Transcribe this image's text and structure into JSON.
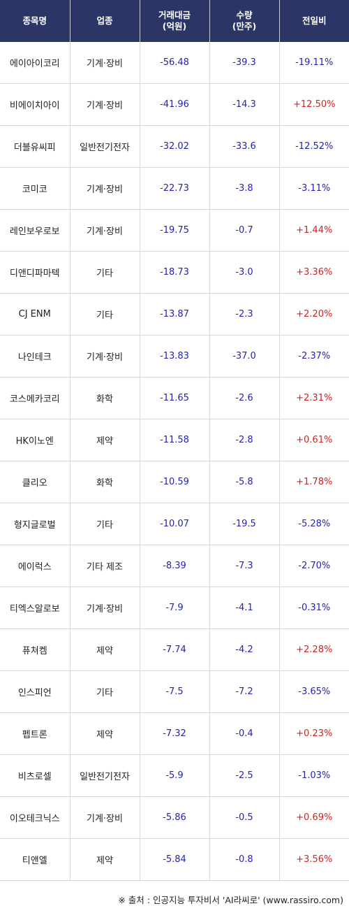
{
  "colors": {
    "header_bg": "#2b3566",
    "header_text": "#ffffff",
    "up": "#d62020",
    "down": "#2424a8"
  },
  "header": {
    "name": "종목명",
    "sector": "업종",
    "amount_line1": "거래대금",
    "amount_line2": "(억원)",
    "qty_line1": "수량",
    "qty_line2": "(만주)",
    "change": "전일비"
  },
  "rows": [
    {
      "name": "에이아이코리",
      "sector": "기계·장비",
      "amount": "-56.48",
      "qty": "-39.3",
      "change": "-19.11%",
      "dir": "down"
    },
    {
      "name": "비에이치아이",
      "sector": "기계·장비",
      "amount": "-41.96",
      "qty": "-14.3",
      "change": "+12.50%",
      "dir": "up"
    },
    {
      "name": "더블유씨피",
      "sector": "일반전기전자",
      "amount": "-32.02",
      "qty": "-33.6",
      "change": "-12.52%",
      "dir": "down"
    },
    {
      "name": "코미코",
      "sector": "기계·장비",
      "amount": "-22.73",
      "qty": "-3.8",
      "change": "-3.11%",
      "dir": "down"
    },
    {
      "name": "레인보우로보",
      "sector": "기계·장비",
      "amount": "-19.75",
      "qty": "-0.7",
      "change": "+1.44%",
      "dir": "up"
    },
    {
      "name": "디앤디파마텍",
      "sector": "기타",
      "amount": "-18.73",
      "qty": "-3.0",
      "change": "+3.36%",
      "dir": "up"
    },
    {
      "name": "CJ ENM",
      "sector": "기타",
      "amount": "-13.87",
      "qty": "-2.3",
      "change": "+2.20%",
      "dir": "up"
    },
    {
      "name": "나인테크",
      "sector": "기계·장비",
      "amount": "-13.83",
      "qty": "-37.0",
      "change": "-2.37%",
      "dir": "down"
    },
    {
      "name": "코스메카코리",
      "sector": "화학",
      "amount": "-11.65",
      "qty": "-2.6",
      "change": "+2.31%",
      "dir": "up"
    },
    {
      "name": "HK이노엔",
      "sector": "제약",
      "amount": "-11.58",
      "qty": "-2.8",
      "change": "+0.61%",
      "dir": "up"
    },
    {
      "name": "클리오",
      "sector": "화학",
      "amount": "-10.59",
      "qty": "-5.8",
      "change": "+1.78%",
      "dir": "up"
    },
    {
      "name": "형지글로벌",
      "sector": "기타",
      "amount": "-10.07",
      "qty": "-19.5",
      "change": "-5.28%",
      "dir": "down"
    },
    {
      "name": "에이럭스",
      "sector": "기타 제조",
      "amount": "-8.39",
      "qty": "-7.3",
      "change": "-2.70%",
      "dir": "down"
    },
    {
      "name": "티엑스알로보",
      "sector": "기계·장비",
      "amount": "-7.9",
      "qty": "-4.1",
      "change": "-0.31%",
      "dir": "down"
    },
    {
      "name": "퓨쳐켐",
      "sector": "제약",
      "amount": "-7.74",
      "qty": "-4.2",
      "change": "+2.28%",
      "dir": "up"
    },
    {
      "name": "인스피언",
      "sector": "기타",
      "amount": "-7.5",
      "qty": "-7.2",
      "change": "-3.65%",
      "dir": "down"
    },
    {
      "name": "펩트론",
      "sector": "제약",
      "amount": "-7.32",
      "qty": "-0.4",
      "change": "+0.23%",
      "dir": "up"
    },
    {
      "name": "비츠로셀",
      "sector": "일반전기전자",
      "amount": "-5.9",
      "qty": "-2.5",
      "change": "-1.03%",
      "dir": "down"
    },
    {
      "name": "이오테크닉스",
      "sector": "기계·장비",
      "amount": "-5.86",
      "qty": "-0.5",
      "change": "+0.69%",
      "dir": "up"
    },
    {
      "name": "티앤엘",
      "sector": "제약",
      "amount": "-5.84",
      "qty": "-0.8",
      "change": "+3.56%",
      "dir": "up"
    }
  ],
  "source": "※ 출처 : 인공지능 투자비서 'AI라씨로' (www.rassiro.com)"
}
